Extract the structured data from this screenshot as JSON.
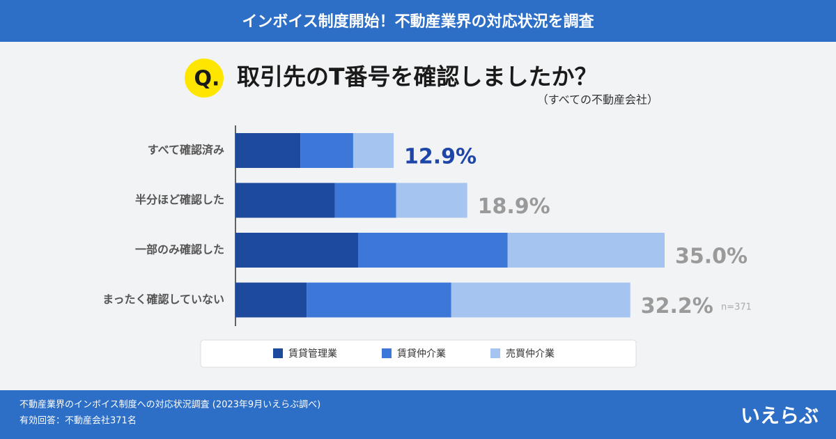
{
  "header": {
    "title": "インボイス制度開始！不動産業界の対応状況を調査"
  },
  "chart_data": {
    "type": "stacked-barh",
    "badge": "Q.",
    "title": "取引先のT番号を確認しましたか？",
    "subtitle": "（すべての不動産会社）",
    "categories": [
      "すべて確認済み",
      "半分ほど確認した",
      "一部のみ確認した",
      "まったく確認していない"
    ],
    "series": [
      {
        "name": "賃貸管理業",
        "color": "#1d4a9c",
        "values": [
          5.3,
          8.1,
          10.0,
          5.8
        ]
      },
      {
        "name": "賃貸仲介業",
        "color": "#3d78d8",
        "values": [
          4.3,
          5.0,
          12.2,
          11.8
        ]
      },
      {
        "name": "売買仲介業",
        "color": "#a6c4f0",
        "values": [
          3.3,
          5.8,
          12.8,
          14.6
        ]
      }
    ],
    "totals": [
      12.9,
      18.9,
      35.0,
      32.2
    ],
    "value_labels": [
      "12.9%",
      "18.9%",
      "35.0%",
      "32.2%"
    ],
    "value_label_colors": [
      "#1e45a8",
      "#9a9a9a",
      "#9a9a9a",
      "#9a9a9a"
    ],
    "note": "n=371",
    "legend": "bottom"
  },
  "footer": {
    "lines": [
      "不動産業界のインボイス制度への対応状況調査 (2023年9月いえらぶ調べ)",
      "有効回答：不動産会社371名"
    ],
    "logo": "いえらぶ"
  }
}
